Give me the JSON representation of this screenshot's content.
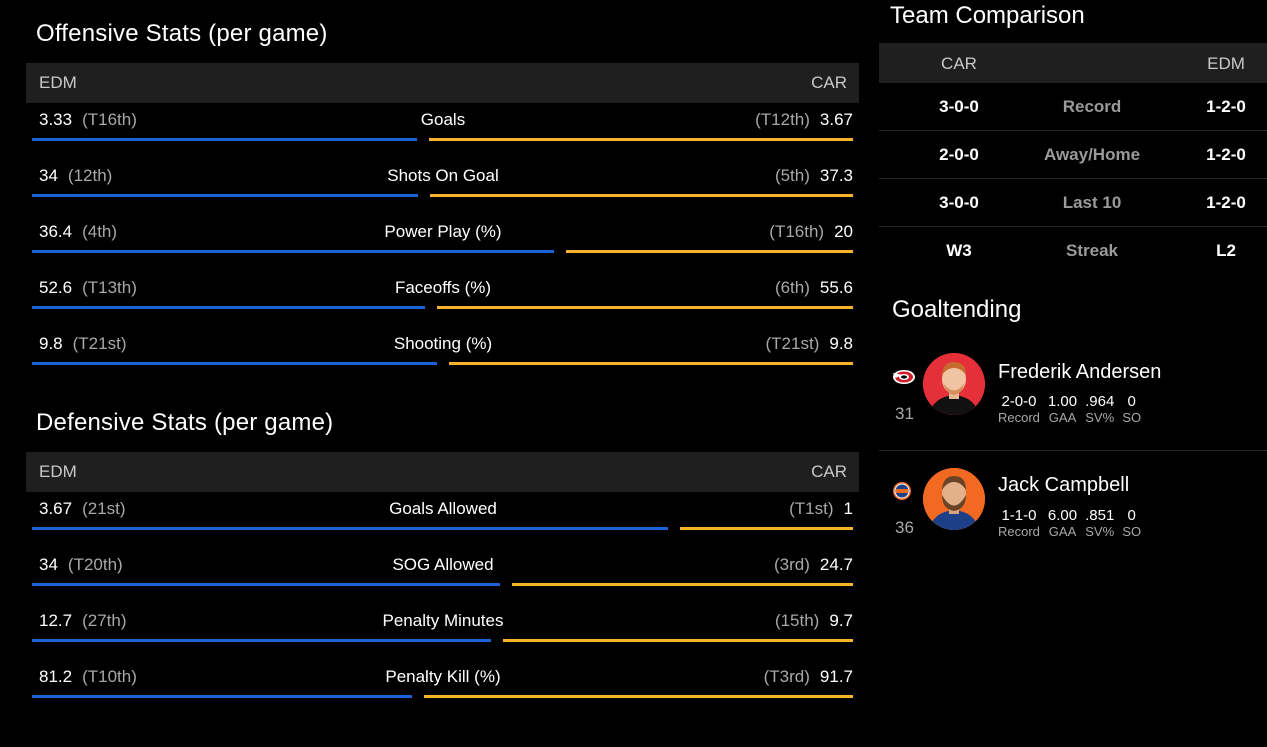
{
  "offensive": {
    "title": "Offensive Stats (per game)",
    "left_team": "EDM",
    "right_team": "CAR",
    "rows": [
      {
        "label": "Goals",
        "left_value": "3.33",
        "left_rank": "(T16th)",
        "right_value": "3.67",
        "right_rank": "(T12th)",
        "left_share": 0.476
      },
      {
        "label": "Shots On Goal",
        "left_value": "34",
        "left_rank": "(12th)",
        "right_value": "37.3",
        "right_rank": "(5th)",
        "left_share": 0.477
      },
      {
        "label": "Power Play (%)",
        "left_value": "36.4",
        "left_rank": "(4th)",
        "right_value": "20",
        "right_rank": "(T16th)",
        "left_share": 0.645
      },
      {
        "label": "Faceoffs (%)",
        "left_value": "52.6",
        "left_rank": "(T13th)",
        "right_value": "55.6",
        "right_rank": "(6th)",
        "left_share": 0.486
      },
      {
        "label": "Shooting (%)",
        "left_value": "9.8",
        "left_rank": "(T21st)",
        "right_value": "9.8",
        "right_rank": "(T21st)",
        "left_share": 0.5
      }
    ]
  },
  "defensive": {
    "title": "Defensive Stats (per game)",
    "left_team": "EDM",
    "right_team": "CAR",
    "rows": [
      {
        "label": "Goals Allowed",
        "left_value": "3.67",
        "left_rank": "(21st)",
        "right_value": "1",
        "right_rank": "(T1st)",
        "left_share": 0.786
      },
      {
        "label": "SOG Allowed",
        "left_value": "34",
        "left_rank": "(T20th)",
        "right_value": "24.7",
        "right_rank": "(3rd)",
        "left_share": 0.579
      },
      {
        "label": "Penalty Minutes",
        "left_value": "12.7",
        "left_rank": "(27th)",
        "right_value": "9.7",
        "right_rank": "(15th)",
        "left_share": 0.567
      },
      {
        "label": "Penalty Kill (%)",
        "left_value": "81.2",
        "left_rank": "(T10th)",
        "right_value": "91.7",
        "right_rank": "(T3rd)",
        "left_share": 0.47
      }
    ]
  },
  "team_comparison": {
    "title": "Team Comparison",
    "left_team": "CAR",
    "right_team": "EDM",
    "rows": [
      {
        "label": "Record",
        "left": "3-0-0",
        "right": "1-2-0"
      },
      {
        "label": "Away/Home",
        "left": "2-0-0",
        "right": "1-2-0"
      },
      {
        "label": "Last 10",
        "left": "3-0-0",
        "right": "1-2-0"
      },
      {
        "label": "Streak",
        "left": "W3",
        "right": "L2"
      }
    ]
  },
  "goaltending": {
    "title": "Goaltending",
    "goalies": [
      {
        "team_logo": "hurricanes-logo-icon",
        "number": "31",
        "name": "Frederik Andersen",
        "stats": [
          {
            "v": "2-0-0",
            "k": "Record"
          },
          {
            "v": "1.00",
            "k": "GAA"
          },
          {
            "v": ".964",
            "k": "SV%"
          },
          {
            "v": "0",
            "k": "SO"
          }
        ],
        "photo_bg": "#e5303a"
      },
      {
        "team_logo": "oilers-logo-icon",
        "number": "36",
        "name": "Jack Campbell",
        "stats": [
          {
            "v": "1-1-0",
            "k": "Record"
          },
          {
            "v": "6.00",
            "k": "GAA"
          },
          {
            "v": ".851",
            "k": "SV%"
          },
          {
            "v": "0",
            "k": "SO"
          }
        ],
        "photo_bg": "#f26a21"
      }
    ]
  },
  "colors": {
    "edm_bar": "#1b62d6",
    "car_bar": "#f4b32a"
  }
}
